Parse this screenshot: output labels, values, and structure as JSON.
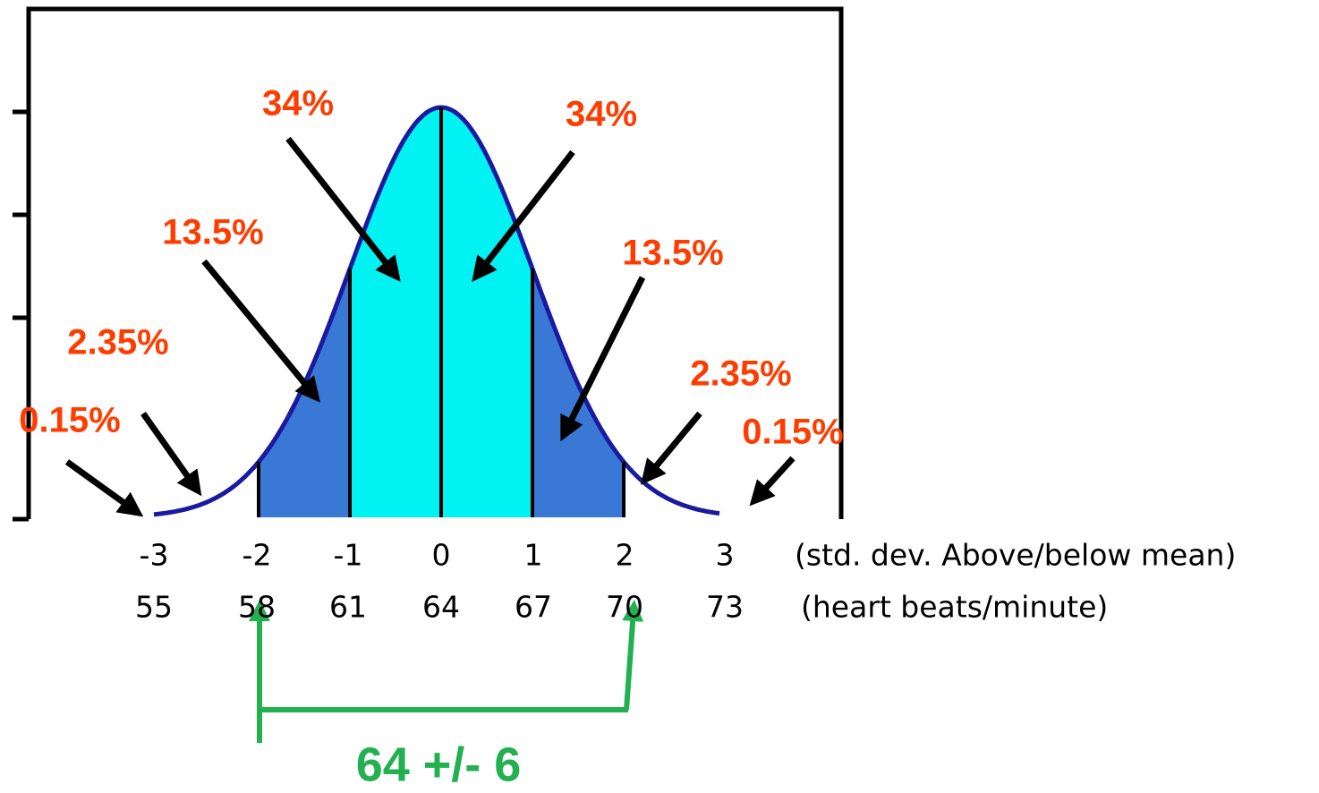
{
  "percent_labels": [
    "34%",
    "34%",
    "13.5%",
    "13.5%",
    "2.35%",
    "2.35%",
    "0.15%",
    "0.15%"
  ],
  "sd_row": {
    "values": [
      "-3",
      "-2",
      "-1",
      "0",
      "1",
      "2",
      "3"
    ],
    "caption": "(std. dev. Above/below mean)"
  },
  "bpm_row": {
    "values": [
      "55",
      "58",
      "61",
      "64",
      "67",
      "70",
      "73"
    ],
    "caption": "(heart beats/minute)"
  },
  "range_label": "64 +/- 6"
}
